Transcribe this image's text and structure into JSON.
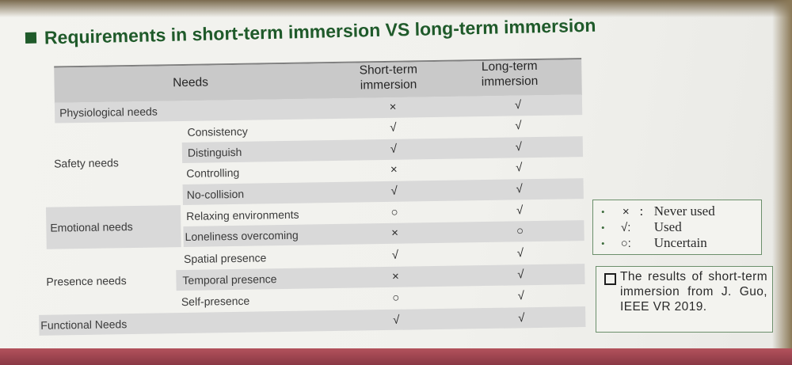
{
  "title": "Requirements in short-term immersion VS long-term immersion",
  "table": {
    "headers": {
      "needs": "Needs",
      "short_term": "Short-term immersion",
      "long_term": "Long-term immersion"
    },
    "categories": {
      "physiological": "Physiological needs",
      "safety": "Safety needs",
      "emotional": "Emotional needs",
      "presence": "Presence needs",
      "functional": "Functional Needs"
    },
    "rows": [
      {
        "sub": "",
        "short": "×",
        "long": "√"
      },
      {
        "sub": "Consistency",
        "short": "√",
        "long": "√"
      },
      {
        "sub": "Distinguish",
        "short": "√",
        "long": "√"
      },
      {
        "sub": "Controlling",
        "short": "×",
        "long": "√"
      },
      {
        "sub": "No-collision",
        "short": "√",
        "long": "√"
      },
      {
        "sub": "Relaxing environments",
        "short": "○",
        "long": "√"
      },
      {
        "sub": "Loneliness overcoming",
        "short": "×",
        "long": "○"
      },
      {
        "sub": "Spatial presence",
        "short": "√",
        "long": "√"
      },
      {
        "sub": "Temporal presence",
        "short": "×",
        "long": "√"
      },
      {
        "sub": "Self-presence",
        "short": "○",
        "long": "√"
      },
      {
        "sub": "",
        "short": "√",
        "long": "√"
      }
    ]
  },
  "legend": [
    {
      "bullet": "•",
      "symbol": "×",
      "text": "Never used"
    },
    {
      "bullet": "•",
      "symbol": "√:",
      "text": "Used"
    },
    {
      "bullet": "•",
      "symbol": "○:",
      "text": "Uncertain"
    }
  ],
  "note": "The results of short-term immersion from J. Guo, IEEE VR 2019.",
  "colors": {
    "title_green": "#1f5a2a",
    "band_gray": "#d9d9d9",
    "header_gray": "#c9c9c9",
    "border_green": "#6b8f6b",
    "accent_bar": "#a3444f"
  }
}
